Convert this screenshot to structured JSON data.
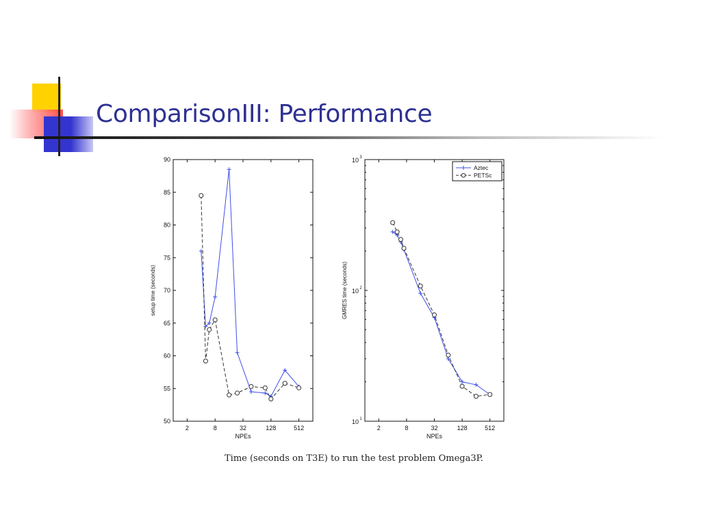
{
  "slide": {
    "title": "ComparisonIII: Performance",
    "caption": "Time (seconds on T3E) to run the test problem Omega3P."
  },
  "colors": {
    "title": "#2e3192",
    "accent_yellow": "#ffd200",
    "accent_red": "#ff4040",
    "accent_blue": "#3333cc",
    "aztec": "#3d4ee8",
    "petsc": "#333333"
  },
  "chart_data": [
    {
      "type": "line",
      "title": "",
      "xlabel": "NPEs",
      "ylabel": "setup time (seconds)",
      "xscale": "log2",
      "xlim": [
        1,
        1024
      ],
      "ylim": [
        50,
        90
      ],
      "xticks": [
        2,
        8,
        32,
        128,
        512
      ],
      "yticks": [
        50,
        55,
        60,
        65,
        70,
        75,
        80,
        85,
        90
      ],
      "grid": false,
      "series": [
        {
          "name": "Aztec",
          "marker": "+",
          "style": "solid",
          "x": [
            4,
            5,
            6,
            8,
            16,
            24,
            48,
            96,
            128,
            256,
            512
          ],
          "y": [
            76,
            64.5,
            65,
            69,
            88.5,
            60.5,
            54.5,
            54.3,
            53.8,
            57.8,
            55.3
          ]
        },
        {
          "name": "PETSc",
          "marker": "o",
          "style": "dashed",
          "x": [
            4,
            5,
            6,
            8,
            16,
            24,
            48,
            96,
            128,
            256,
            512
          ],
          "y": [
            84.5,
            59.2,
            64,
            65.5,
            54,
            54.3,
            55.3,
            55.1,
            53.4,
            55.8,
            55.1
          ]
        }
      ]
    },
    {
      "type": "line",
      "title": "",
      "xlabel": "NPEs",
      "ylabel": "GMRES time (seconds)",
      "xscale": "log2",
      "yscale": "log10",
      "xlim": [
        1,
        1024
      ],
      "ylim": [
        10,
        1000
      ],
      "xticks": [
        2,
        8,
        32,
        128,
        512
      ],
      "yticks": [
        10,
        100,
        1000
      ],
      "ytick_labels": [
        {
          "base": "10",
          "exp": "1"
        },
        {
          "base": "10",
          "exp": "2"
        },
        {
          "base": "10",
          "exp": "3"
        }
      ],
      "legend": "top-right",
      "grid": false,
      "series": [
        {
          "name": "Aztec",
          "marker": "+",
          "style": "solid",
          "x": [
            4,
            5,
            6,
            7,
            16,
            32,
            64,
            128,
            256,
            512
          ],
          "y": [
            280,
            265,
            235,
            205,
            95,
            62,
            30,
            20,
            19,
            16
          ]
        },
        {
          "name": "PETSc",
          "marker": "o",
          "style": "dashed",
          "x": [
            4,
            5,
            6,
            7,
            16,
            32,
            64,
            128,
            256,
            512
          ],
          "y": [
            330,
            280,
            245,
            210,
            108,
            65,
            32,
            18.5,
            15.5,
            16
          ]
        }
      ]
    }
  ]
}
